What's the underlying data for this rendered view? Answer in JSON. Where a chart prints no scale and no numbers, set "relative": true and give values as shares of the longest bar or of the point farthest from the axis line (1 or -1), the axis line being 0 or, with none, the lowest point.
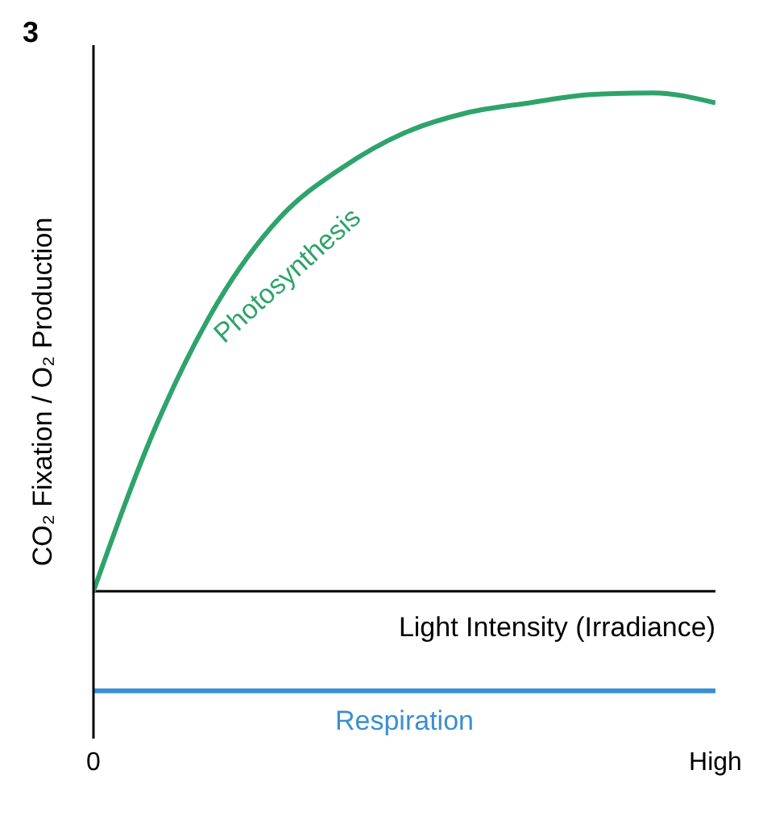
{
  "chart_data": {
    "type": "line",
    "title": "3",
    "xlabel": "Light Intensity (Irradiance)",
    "ylabel": "CO₂ Fixation / O₂ Production",
    "relative": true,
    "categories": [
      "0",
      null,
      null,
      null,
      null,
      null,
      null,
      null,
      null,
      null,
      "High"
    ],
    "marker": "none",
    "line_style": "solid",
    "series": [
      {
        "name": "Photosynthesis",
        "color": "#2ea36b",
        "values": [
          0,
          0.33,
          0.58,
          0.75,
          0.85,
          0.92,
          0.96,
          0.98,
          0.997,
          1,
          0.98
        ]
      },
      {
        "name": "Respiration",
        "color": "#3a8fd0",
        "values": [
          -0.2,
          -0.2,
          -0.2,
          -0.2,
          -0.2,
          -0.2,
          -0.2,
          -0.2,
          -0.2,
          -0.2,
          -0.2
        ]
      }
    ]
  }
}
